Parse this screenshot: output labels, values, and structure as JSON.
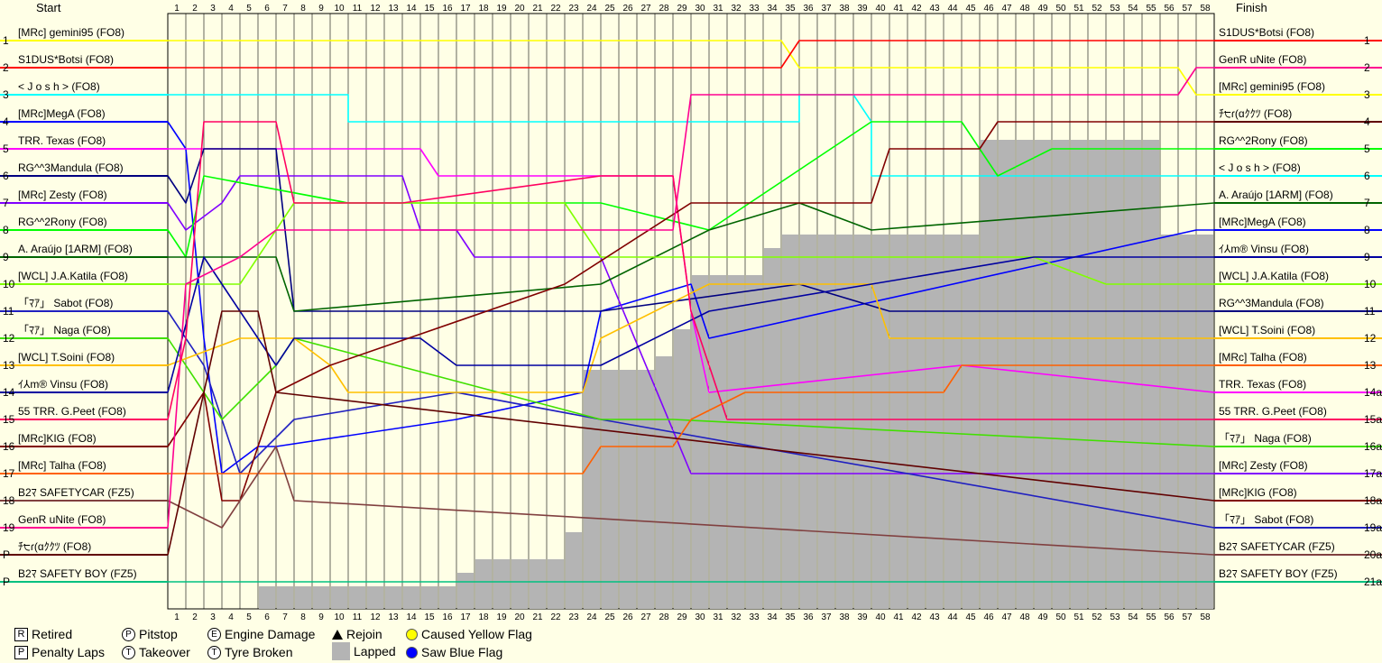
{
  "chart_data": {
    "type": "line",
    "start_label": "Start",
    "finish_label": "Finish",
    "laps": [
      1,
      2,
      3,
      4,
      5,
      6,
      7,
      8,
      9,
      10,
      11,
      12,
      13,
      14,
      15,
      16,
      17,
      18,
      19,
      20,
      21,
      22,
      23,
      24,
      25,
      26,
      27,
      28,
      29,
      30,
      31,
      32,
      33,
      34,
      35,
      36,
      37,
      38,
      39,
      40,
      41,
      42,
      43,
      44,
      45,
      46,
      47,
      48,
      49,
      50,
      51,
      52,
      53,
      54,
      55,
      56,
      57,
      58
    ],
    "start_positions": [
      "1",
      "2",
      "3",
      "4",
      "5",
      "6",
      "7",
      "8",
      "9",
      "10",
      "11",
      "12",
      "13",
      "14",
      "15",
      "16",
      "17",
      "18",
      "19",
      "P",
      "P"
    ],
    "finish_positions": [
      "1",
      "2",
      "3",
      "4",
      "5",
      "6",
      "7",
      "8",
      "9",
      "10",
      "11",
      "12",
      "13",
      "14a",
      "15a",
      "16a",
      "17a",
      "18a",
      "19a",
      "20a",
      "21a"
    ],
    "start_grid": [
      {
        "name": "[MRc] gemini95 (FO8)",
        "color": "#ffff00"
      },
      {
        "name": "S1DUS*Botsi (FO8)",
        "color": "#ff0000"
      },
      {
        "name": "< J o s h > (FO8)",
        "color": "#00ffff"
      },
      {
        "name": "[MRc]MegA (FO8)",
        "color": "#0000ff"
      },
      {
        "name": "TRR. Texas (FO8)",
        "color": "#ff00ff"
      },
      {
        "name": "RG^^3Mandula (FO8)",
        "color": "#000080"
      },
      {
        "name": "[MRc] Zesty (FO8)",
        "color": "#8000ff"
      },
      {
        "name": "RG^^2Rony (FO8)",
        "color": "#00ff00"
      },
      {
        "name": "A. Araújo [1ARM] (FO8)",
        "color": "#006400"
      },
      {
        "name": "[WCL] J.A.Katila (FO8)",
        "color": "#80ff00"
      },
      {
        "name": "「ﾏｱ」 Sabot (FO8)",
        "color": "#2020c0"
      },
      {
        "name": "「ﾏｱ」 Naga (FO8)",
        "color": "#40e000"
      },
      {
        "name": "[WCL] T.Soini (FO8)",
        "color": "#ffc000"
      },
      {
        "name": "ｲ⅄m® Vinsu (FO8)",
        "color": "#0000a0"
      },
      {
        "name": "55 TRR. G.Peet (FO8)",
        "color": "#ff0060"
      },
      {
        "name": "[MRc]KIG (FO8)",
        "color": "#800000"
      },
      {
        "name": "[MRc] Talha (FO8)",
        "color": "#ff6000"
      },
      {
        "name": "B2ﾏ SAFETYCAR (FZ5)",
        "color": "#804040"
      },
      {
        "name": "GenR uNite (FO8)",
        "color": "#ff0090"
      },
      {
        "name": "ﾁ੮ɾ(ɑｸｸﾂ (FO8)",
        "color": "#600000"
      },
      {
        "name": "B2ﾏ SAFETY BOY (FZ5)",
        "color": "#00c080"
      }
    ],
    "finish_order": [
      {
        "name": "S1DUS*Botsi (FO8)",
        "color": "#ff0000"
      },
      {
        "name": "GenR uNite (FO8)",
        "color": "#ff0090"
      },
      {
        "name": "[MRc] gemini95 (FO8)",
        "color": "#ffff00"
      },
      {
        "name": "ﾁ੮ɾ(ɑｸｸﾂ (FO8)",
        "color": "#600000"
      },
      {
        "name": "RG^^2Rony (FO8)",
        "color": "#00ff00"
      },
      {
        "name": "< J o s h > (FO8)",
        "color": "#00ffff"
      },
      {
        "name": "A. Araújo [1ARM] (FO8)",
        "color": "#006400"
      },
      {
        "name": "[MRc]MegA (FO8)",
        "color": "#0000ff"
      },
      {
        "name": "ｲ⅄m® Vinsu (FO8)",
        "color": "#0000a0"
      },
      {
        "name": "[WCL] J.A.Katila (FO8)",
        "color": "#80ff00"
      },
      {
        "name": "RG^^3Mandula (FO8)",
        "color": "#000080"
      },
      {
        "name": "[WCL] T.Soini (FO8)",
        "color": "#ffc000"
      },
      {
        "name": "[MRc] Talha (FO8)",
        "color": "#ff6000"
      },
      {
        "name": "TRR. Texas (FO8)",
        "color": "#ff00ff"
      },
      {
        "name": "55 TRR. G.Peet (FO8)",
        "color": "#ff0060"
      },
      {
        "name": "「ﾏｱ」 Naga (FO8)",
        "color": "#40e000"
      },
      {
        "name": "[MRc] Zesty (FO8)",
        "color": "#8000ff"
      },
      {
        "name": "[MRc]KIG (FO8)",
        "color": "#800000"
      },
      {
        "name": "「ﾏｱ」 Sabot (FO8)",
        "color": "#2020c0"
      },
      {
        "name": "B2ﾏ SAFETYCAR (FZ5)",
        "color": "#804040"
      },
      {
        "name": "B2ﾏ SAFETY BOY (FZ5)",
        "color": "#00c080"
      }
    ],
    "series": [
      {
        "color": "#ffff00",
        "points": [
          [
            0,
            1
          ],
          [
            34,
            1
          ],
          [
            35,
            2
          ],
          [
            56,
            2
          ],
          [
            57,
            3
          ],
          [
            58,
            3
          ]
        ]
      },
      {
        "color": "#ff0000",
        "points": [
          [
            0,
            2
          ],
          [
            34,
            2
          ],
          [
            35,
            1
          ],
          [
            58,
            1
          ]
        ]
      },
      {
        "color": "#00ffff",
        "points": [
          [
            0,
            3
          ],
          [
            10,
            3
          ],
          [
            10,
            4
          ],
          [
            35,
            4
          ],
          [
            35,
            3
          ],
          [
            38,
            3
          ],
          [
            39,
            4
          ],
          [
            39,
            6
          ],
          [
            58,
            6
          ]
        ]
      },
      {
        "color": "#0000ff",
        "points": [
          [
            0,
            4
          ],
          [
            1,
            5
          ],
          [
            2,
            12
          ],
          [
            3,
            17
          ],
          [
            5,
            16
          ],
          [
            6,
            16
          ],
          [
            16,
            15
          ],
          [
            23,
            14
          ],
          [
            24,
            11
          ],
          [
            29,
            10
          ],
          [
            30,
            12
          ],
          [
            57,
            8
          ],
          [
            58,
            8
          ]
        ]
      },
      {
        "color": "#ff00ff",
        "points": [
          [
            0,
            5
          ],
          [
            7,
            5
          ],
          [
            14,
            5
          ],
          [
            15,
            6
          ],
          [
            22,
            6
          ],
          [
            24,
            6
          ],
          [
            28,
            6
          ],
          [
            29,
            11
          ],
          [
            30,
            14
          ],
          [
            44,
            13
          ],
          [
            44,
            13
          ],
          [
            58,
            14
          ]
        ]
      },
      {
        "color": "#000080",
        "points": [
          [
            0,
            6
          ],
          [
            1,
            7
          ],
          [
            2,
            5
          ],
          [
            6,
            5
          ],
          [
            7,
            11
          ],
          [
            18,
            11
          ],
          [
            24,
            11
          ],
          [
            35,
            10
          ],
          [
            40,
            11
          ],
          [
            58,
            11
          ]
        ]
      },
      {
        "color": "#8000ff",
        "points": [
          [
            0,
            7
          ],
          [
            1,
            8
          ],
          [
            3,
            7
          ],
          [
            4,
            6
          ],
          [
            13,
            6
          ],
          [
            14,
            8
          ],
          [
            16,
            8
          ],
          [
            17,
            9
          ],
          [
            24,
            9
          ],
          [
            29,
            17
          ],
          [
            58,
            17
          ]
        ]
      },
      {
        "color": "#00ff00",
        "points": [
          [
            0,
            8
          ],
          [
            1,
            9
          ],
          [
            2,
            6
          ],
          [
            10,
            7
          ],
          [
            24,
            7
          ],
          [
            30,
            8
          ],
          [
            39,
            4
          ],
          [
            44,
            4
          ],
          [
            46,
            6
          ],
          [
            49,
            5
          ],
          [
            58,
            5
          ]
        ]
      },
      {
        "color": "#006400",
        "points": [
          [
            0,
            9
          ],
          [
            6,
            9
          ],
          [
            7,
            11
          ],
          [
            24,
            10
          ],
          [
            30,
            8
          ],
          [
            35,
            7
          ],
          [
            39,
            8
          ],
          [
            58,
            7
          ]
        ]
      },
      {
        "color": "#80ff00",
        "points": [
          [
            0,
            10
          ],
          [
            4,
            10
          ],
          [
            7,
            7
          ],
          [
            22,
            7
          ],
          [
            24,
            9
          ],
          [
            34,
            9
          ],
          [
            48,
            9
          ],
          [
            52,
            10
          ],
          [
            58,
            10
          ]
        ]
      },
      {
        "color": "#2020c0",
        "points": [
          [
            0,
            11
          ],
          [
            2,
            13
          ],
          [
            4,
            17
          ],
          [
            7,
            15
          ],
          [
            16,
            14
          ],
          [
            24,
            15
          ],
          [
            58,
            19
          ]
        ]
      },
      {
        "color": "#40e000",
        "points": [
          [
            0,
            12
          ],
          [
            3,
            15
          ],
          [
            6,
            13
          ],
          [
            7,
            12
          ],
          [
            24,
            15
          ],
          [
            28,
            15
          ],
          [
            58,
            16
          ]
        ]
      },
      {
        "color": "#ffc000",
        "points": [
          [
            0,
            13
          ],
          [
            4,
            12
          ],
          [
            7,
            12
          ],
          [
            9,
            13
          ],
          [
            10,
            14
          ],
          [
            23,
            14
          ],
          [
            24,
            12
          ],
          [
            30,
            10
          ],
          [
            39,
            10
          ],
          [
            40,
            12
          ],
          [
            58,
            12
          ]
        ]
      },
      {
        "color": "#0000a0",
        "points": [
          [
            0,
            14
          ],
          [
            2,
            9
          ],
          [
            6,
            13
          ],
          [
            7,
            12
          ],
          [
            14,
            12
          ],
          [
            16,
            13
          ],
          [
            24,
            13
          ],
          [
            30,
            11
          ],
          [
            48,
            9
          ],
          [
            56,
            9
          ],
          [
            58,
            9
          ]
        ]
      },
      {
        "color": "#ff0060",
        "points": [
          [
            0,
            15
          ],
          [
            1,
            12
          ],
          [
            2,
            4
          ],
          [
            6,
            4
          ],
          [
            7,
            7
          ],
          [
            13,
            7
          ],
          [
            24,
            6
          ],
          [
            28,
            6
          ],
          [
            29,
            11
          ],
          [
            31,
            15
          ],
          [
            58,
            15
          ]
        ]
      },
      {
        "color": "#800000",
        "points": [
          [
            0,
            16
          ],
          [
            2,
            14
          ],
          [
            3,
            18
          ],
          [
            4,
            18
          ],
          [
            6,
            14
          ],
          [
            9,
            13
          ],
          [
            22,
            10
          ],
          [
            29,
            7
          ],
          [
            39,
            7
          ],
          [
            40,
            5
          ],
          [
            45,
            5
          ],
          [
            46,
            4
          ],
          [
            58,
            4
          ]
        ]
      },
      {
        "color": "#ff6000",
        "points": [
          [
            0,
            17
          ],
          [
            6,
            17
          ],
          [
            23,
            17
          ],
          [
            24,
            16
          ],
          [
            28,
            16
          ],
          [
            29,
            15
          ],
          [
            32,
            14
          ],
          [
            43,
            14
          ],
          [
            44,
            13
          ],
          [
            58,
            13
          ]
        ]
      },
      {
        "color": "#804040",
        "points": [
          [
            0,
            18
          ],
          [
            3,
            19
          ],
          [
            4,
            18
          ],
          [
            6,
            16
          ],
          [
            7,
            18
          ],
          [
            58,
            20
          ]
        ]
      },
      {
        "color": "#ff0090",
        "points": [
          [
            0,
            19
          ],
          [
            1,
            10
          ],
          [
            4,
            9
          ],
          [
            6,
            8
          ],
          [
            28,
            8
          ],
          [
            29,
            3
          ],
          [
            56,
            3
          ],
          [
            57,
            2
          ],
          [
            58,
            2
          ]
        ]
      },
      {
        "color": "#600000",
        "points": [
          [
            0,
            20
          ],
          [
            3,
            11
          ],
          [
            5,
            11
          ],
          [
            6,
            14
          ],
          [
            58,
            18
          ]
        ]
      },
      {
        "color": "#00c080",
        "points": [
          [
            0,
            21
          ],
          [
            58,
            21
          ]
        ]
      }
    ],
    "lapped": [
      0,
      0,
      0,
      0,
      0,
      0.5,
      0.5,
      0.5,
      0.5,
      0.5,
      0.5,
      0.5,
      0.5,
      0.5,
      0.5,
      0.5,
      1,
      1.5,
      1.5,
      1.5,
      1.5,
      1.5,
      2.5,
      8.5,
      8.5,
      8.5,
      8.5,
      9,
      10,
      12,
      12,
      12,
      12,
      13,
      13.5,
      13.5,
      13.5,
      13.5,
      13.5,
      13.5,
      13.5,
      13.5,
      13.5,
      13.5,
      13.5,
      17,
      17,
      17,
      17,
      17,
      17,
      17,
      17,
      17,
      17,
      13.5,
      13.5,
      13.5
    ],
    "legend": [
      {
        "symbol": "R",
        "style": "box",
        "label": "Retired"
      },
      {
        "symbol": "P",
        "style": "circle",
        "label": "Pitstop"
      },
      {
        "symbol": "E",
        "style": "house",
        "label": "Engine Damage"
      },
      {
        "symbol": "▲",
        "style": "triangle",
        "label": "Rejoin"
      },
      {
        "symbol": "●",
        "style": "yellow-dot",
        "label": "Caused Yellow Flag"
      },
      {
        "symbol": "P",
        "style": "box",
        "label": "Penalty Laps"
      },
      {
        "symbol": "T",
        "style": "circle",
        "label": "Takeover"
      },
      {
        "symbol": "T",
        "style": "house",
        "label": "Tyre Broken"
      },
      {
        "symbol": "",
        "style": "gray-box",
        "label": "Lapped"
      },
      {
        "symbol": "●",
        "style": "blue-dot",
        "label": "Saw Blue Flag"
      }
    ]
  }
}
